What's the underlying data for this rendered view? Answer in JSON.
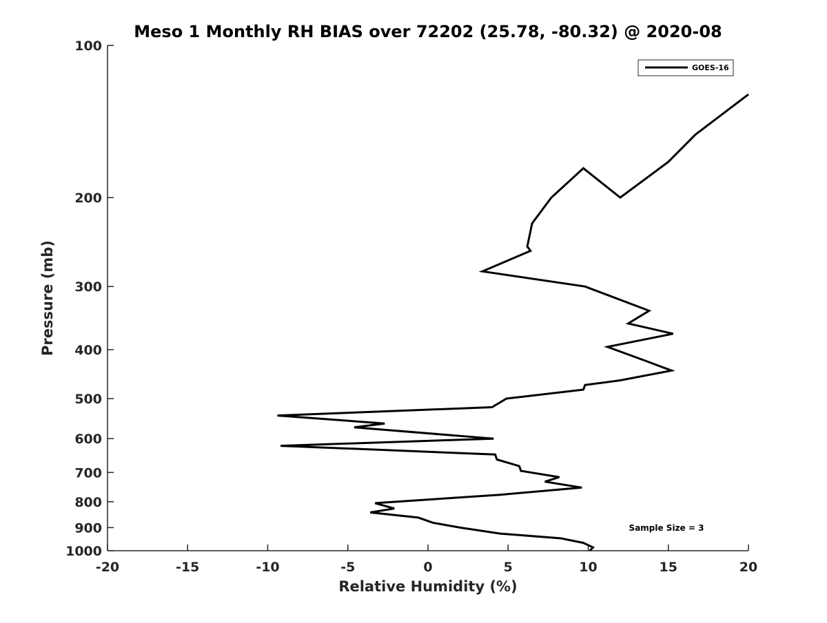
{
  "chart_data": {
    "type": "line",
    "title": "Meso 1 Monthly RH BIAS over 72202 (25.78, -80.32) @ 2020-08",
    "xlabel": "Relative Humidity (%)",
    "ylabel": "Pressure (mb)",
    "xlim": [
      -20,
      20
    ],
    "ylim": [
      100,
      1000
    ],
    "yscale": "log",
    "y_reversed": true,
    "xticks": [
      "-20",
      "-15",
      "-10",
      "-5",
      "0",
      "5",
      "10",
      "15",
      "20"
    ],
    "yticks": [
      "100",
      "200",
      "300",
      "400",
      "500",
      "600",
      "700",
      "800",
      "900",
      "1000"
    ],
    "grid": false,
    "legend_position": "top-right",
    "annotation": "Sample Size = 3",
    "series": [
      {
        "name": "GOES-16",
        "color": "#000000",
        "points": [
          [
            20.0,
            125
          ],
          [
            16.7,
            150
          ],
          [
            15.0,
            170
          ],
          [
            12.0,
            200
          ],
          [
            9.7,
            175
          ],
          [
            7.7,
            200
          ],
          [
            6.5,
            225
          ],
          [
            6.2,
            250
          ],
          [
            6.4,
            255
          ],
          [
            3.4,
            280
          ],
          [
            9.8,
            300
          ],
          [
            13.8,
            335
          ],
          [
            12.5,
            355
          ],
          [
            15.3,
            372
          ],
          [
            11.2,
            395
          ],
          [
            13.5,
            420
          ],
          [
            15.2,
            440
          ],
          [
            12.0,
            460
          ],
          [
            9.8,
            470
          ],
          [
            9.7,
            480
          ],
          [
            4.9,
            500
          ],
          [
            4.0,
            520
          ],
          [
            -9.4,
            540
          ],
          [
            -2.7,
            560
          ],
          [
            -4.6,
            570
          ],
          [
            4.1,
            600
          ],
          [
            -9.2,
            620
          ],
          [
            4.2,
            645
          ],
          [
            4.3,
            660
          ],
          [
            5.7,
            680
          ],
          [
            5.8,
            695
          ],
          [
            8.2,
            715
          ],
          [
            7.3,
            730
          ],
          [
            9.6,
            750
          ],
          [
            4.5,
            775
          ],
          [
            -3.3,
            805
          ],
          [
            -2.1,
            825
          ],
          [
            -3.6,
            840
          ],
          [
            -0.6,
            860
          ],
          [
            0.3,
            880
          ],
          [
            2.0,
            900
          ],
          [
            4.5,
            925
          ],
          [
            8.3,
            945
          ],
          [
            9.7,
            965
          ],
          [
            10.3,
            985
          ],
          [
            10.1,
            1000
          ]
        ]
      }
    ]
  }
}
